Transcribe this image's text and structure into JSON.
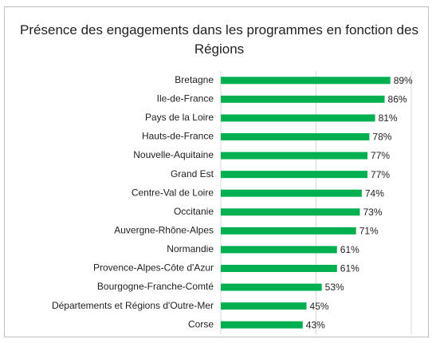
{
  "chart_data": {
    "type": "bar",
    "orientation": "horizontal",
    "title": "Présence des engagements dans les programmes en fonction des Régions",
    "categories": [
      "Bretagne",
      "Ile-de-France",
      "Pays de la Loire",
      "Hauts-de-France",
      "Nouvelle-Aquitaine",
      "Grand Est",
      "Centre-Val de Loire",
      "Occitanie",
      "Auvergne-Rhône-Alpes",
      "Normandie",
      "Provence-Alpes-Côte d'Azur",
      "Bourgogne-Franche-Comté",
      "Départements et Régions d'Outre-Mer",
      "Corse"
    ],
    "values": [
      89,
      86,
      81,
      78,
      77,
      77,
      74,
      73,
      71,
      61,
      61,
      53,
      45,
      43
    ],
    "value_labels": [
      "89%",
      "86%",
      "81%",
      "78%",
      "77%",
      "77%",
      "74%",
      "73%",
      "71%",
      "61%",
      "61%",
      "53%",
      "45%",
      "43%"
    ],
    "color": "#00b050",
    "xlim": [
      0,
      100
    ],
    "xticks": [
      0,
      50,
      100
    ],
    "grid": true
  }
}
